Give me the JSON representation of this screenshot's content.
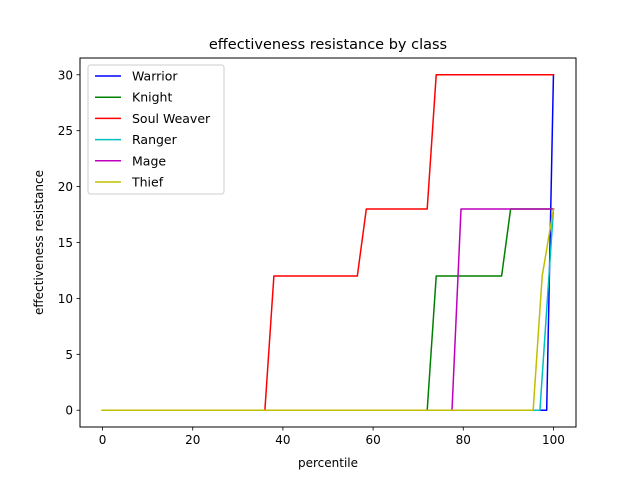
{
  "chart_data": {
    "type": "line",
    "title": "effectiveness resistance by class",
    "xlabel": "percentile",
    "ylabel": "effectiveness resistance",
    "xlim": [
      -5,
      105
    ],
    "ylim": [
      -1.5,
      31.5
    ],
    "xticks": [
      0,
      20,
      40,
      60,
      80,
      100
    ],
    "yticks": [
      0,
      5,
      10,
      15,
      20,
      25,
      30
    ],
    "grid": false,
    "legend_position": "top-left",
    "series": [
      {
        "name": "Warrior",
        "color": "#0000ff",
        "points": [
          [
            0,
            0
          ],
          [
            98.5,
            0
          ],
          [
            100,
            30
          ]
        ]
      },
      {
        "name": "Knight",
        "color": "#008000",
        "points": [
          [
            0,
            0
          ],
          [
            72,
            0
          ],
          [
            74,
            12
          ],
          [
            88.5,
            12
          ],
          [
            90.5,
            18
          ],
          [
            100,
            18
          ]
        ]
      },
      {
        "name": "Soul Weaver",
        "color": "#ff0000",
        "points": [
          [
            0,
            0
          ],
          [
            36,
            0
          ],
          [
            38,
            12
          ],
          [
            56.5,
            12
          ],
          [
            58.5,
            18
          ],
          [
            72,
            18
          ],
          [
            74,
            30
          ],
          [
            100,
            30
          ]
        ]
      },
      {
        "name": "Ranger",
        "color": "#00bfbf",
        "points": [
          [
            0,
            0
          ],
          [
            97,
            0
          ],
          [
            100,
            18
          ]
        ]
      },
      {
        "name": "Mage",
        "color": "#bf00bf",
        "points": [
          [
            0,
            0
          ],
          [
            77.5,
            0
          ],
          [
            79.5,
            18
          ],
          [
            100,
            18
          ]
        ]
      },
      {
        "name": "Thief",
        "color": "#bfbf00",
        "points": [
          [
            0,
            0
          ],
          [
            95.5,
            0
          ],
          [
            97.5,
            12
          ],
          [
            100,
            18
          ]
        ]
      }
    ]
  }
}
